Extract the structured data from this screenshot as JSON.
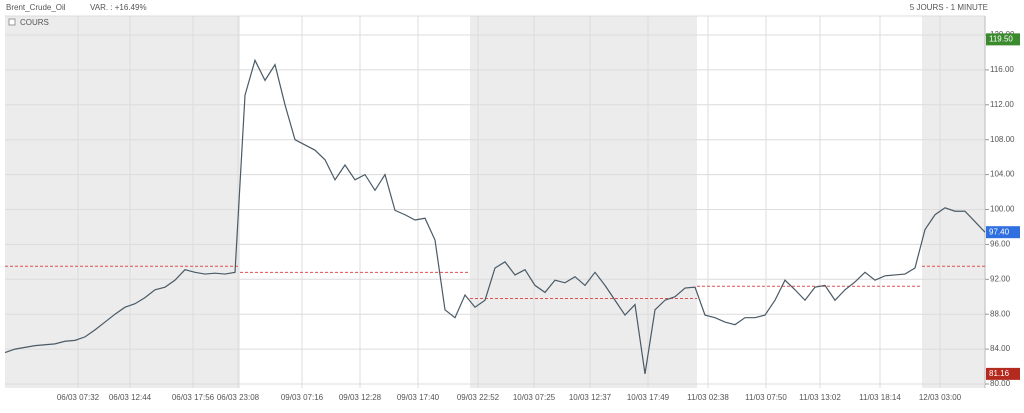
{
  "chart_data": {
    "type": "line",
    "title": "Brent_Crude_Oil",
    "subtitle": "VAR. : +16.49%",
    "period": "5 JOURS - 1 MINUTE",
    "series": [
      {
        "name": "COURS",
        "color": "#4a5a66",
        "values": [
          83.6,
          84.0,
          84.2,
          84.4,
          84.5,
          84.6,
          84.9,
          85.0,
          85.4,
          86.2,
          87.1,
          88.0,
          88.8,
          89.2,
          89.9,
          90.8,
          91.1,
          91.9,
          93.1,
          92.8,
          92.6,
          92.7,
          92.6,
          92.8,
          113.1,
          117.1,
          114.8,
          116.6,
          112.0,
          108.0,
          107.4,
          106.8,
          105.7,
          103.4,
          105.1,
          103.4,
          104.0,
          102.2,
          104.0,
          99.9,
          99.4,
          98.8,
          99.0,
          96.5,
          88.5,
          87.6,
          90.2,
          88.8,
          89.6,
          93.3,
          94.0,
          92.5,
          93.1,
          91.3,
          90.5,
          91.9,
          91.6,
          92.3,
          91.3,
          92.8,
          91.3,
          89.6,
          87.9,
          89.1,
          81.16,
          88.5,
          89.6,
          90.0,
          91.0,
          91.1,
          87.9,
          87.6,
          87.1,
          86.8,
          87.6,
          87.6,
          87.9,
          89.6,
          91.9,
          90.8,
          89.6,
          91.1,
          91.3,
          89.6,
          90.8,
          91.7,
          92.8,
          91.9,
          92.4,
          92.5,
          92.6,
          93.3,
          97.7,
          99.4,
          100.2,
          99.8,
          99.8,
          98.6,
          97.4
        ]
      }
    ],
    "xlim": [
      0,
      98
    ],
    "xticks": [
      {
        "value": 7.3,
        "label": "06/03 07:32"
      },
      {
        "value": 12.5,
        "label": "06/03 12:44"
      },
      {
        "value": 18.8,
        "label": "06/03 17:56"
      },
      {
        "value": 23.3,
        "label": "06/03 23:08"
      },
      {
        "value": 29.7,
        "label": "09/03 07:16"
      },
      {
        "value": 35.5,
        "label": "09/03 12:28"
      },
      {
        "value": 41.3,
        "label": "09/03 17:40"
      },
      {
        "value": 47.3,
        "label": "09/03 22:52"
      },
      {
        "value": 52.9,
        "label": "10/03 07:25"
      },
      {
        "value": 58.5,
        "label": "10/03 12:37"
      },
      {
        "value": 64.3,
        "label": "10/03 17:49"
      },
      {
        "value": 70.3,
        "label": "11/03 02:38"
      },
      {
        "value": 76.1,
        "label": "11/03 07:50"
      },
      {
        "value": 81.5,
        "label": "11/03 13:02"
      },
      {
        "value": 87.5,
        "label": "11/03 18:14"
      },
      {
        "value": 93.5,
        "label": "12/03 03:00"
      }
    ],
    "ylim": [
      80,
      120
    ],
    "yticks": [
      {
        "value": 80,
        "label": "80.00"
      },
      {
        "value": 84,
        "label": "84.00"
      },
      {
        "value": 88,
        "label": "88.00"
      },
      {
        "value": 92,
        "label": "92.00"
      },
      {
        "value": 96,
        "label": "96.00"
      },
      {
        "value": 100,
        "label": "100.00"
      },
      {
        "value": 104,
        "label": "104.00"
      },
      {
        "value": 108,
        "label": "108.00"
      },
      {
        "value": 112,
        "label": "112.00"
      },
      {
        "value": 116,
        "label": "116.00"
      },
      {
        "value": 120,
        "label": "120.00"
      }
    ],
    "grid": true,
    "reference_lines": [
      {
        "value": 93.5,
        "x": [
          0,
          23.5
        ]
      },
      {
        "value": 92.8,
        "x": [
          23.5,
          46.5
        ]
      },
      {
        "value": 89.8,
        "x": [
          46.5,
          69.2
        ]
      },
      {
        "value": 91.2,
        "x": [
          69.2,
          91.7
        ]
      },
      {
        "value": 93.5,
        "x": [
          91.7,
          98
        ]
      }
    ],
    "markers": [
      {
        "value": 119.5,
        "label": "119.50",
        "color": "#3b8a2e"
      },
      {
        "value": 97.4,
        "label": "97.40",
        "color": "#2f6fe0"
      },
      {
        "value": 81.16,
        "label": "81.16",
        "color": "#b52a1f"
      }
    ]
  }
}
